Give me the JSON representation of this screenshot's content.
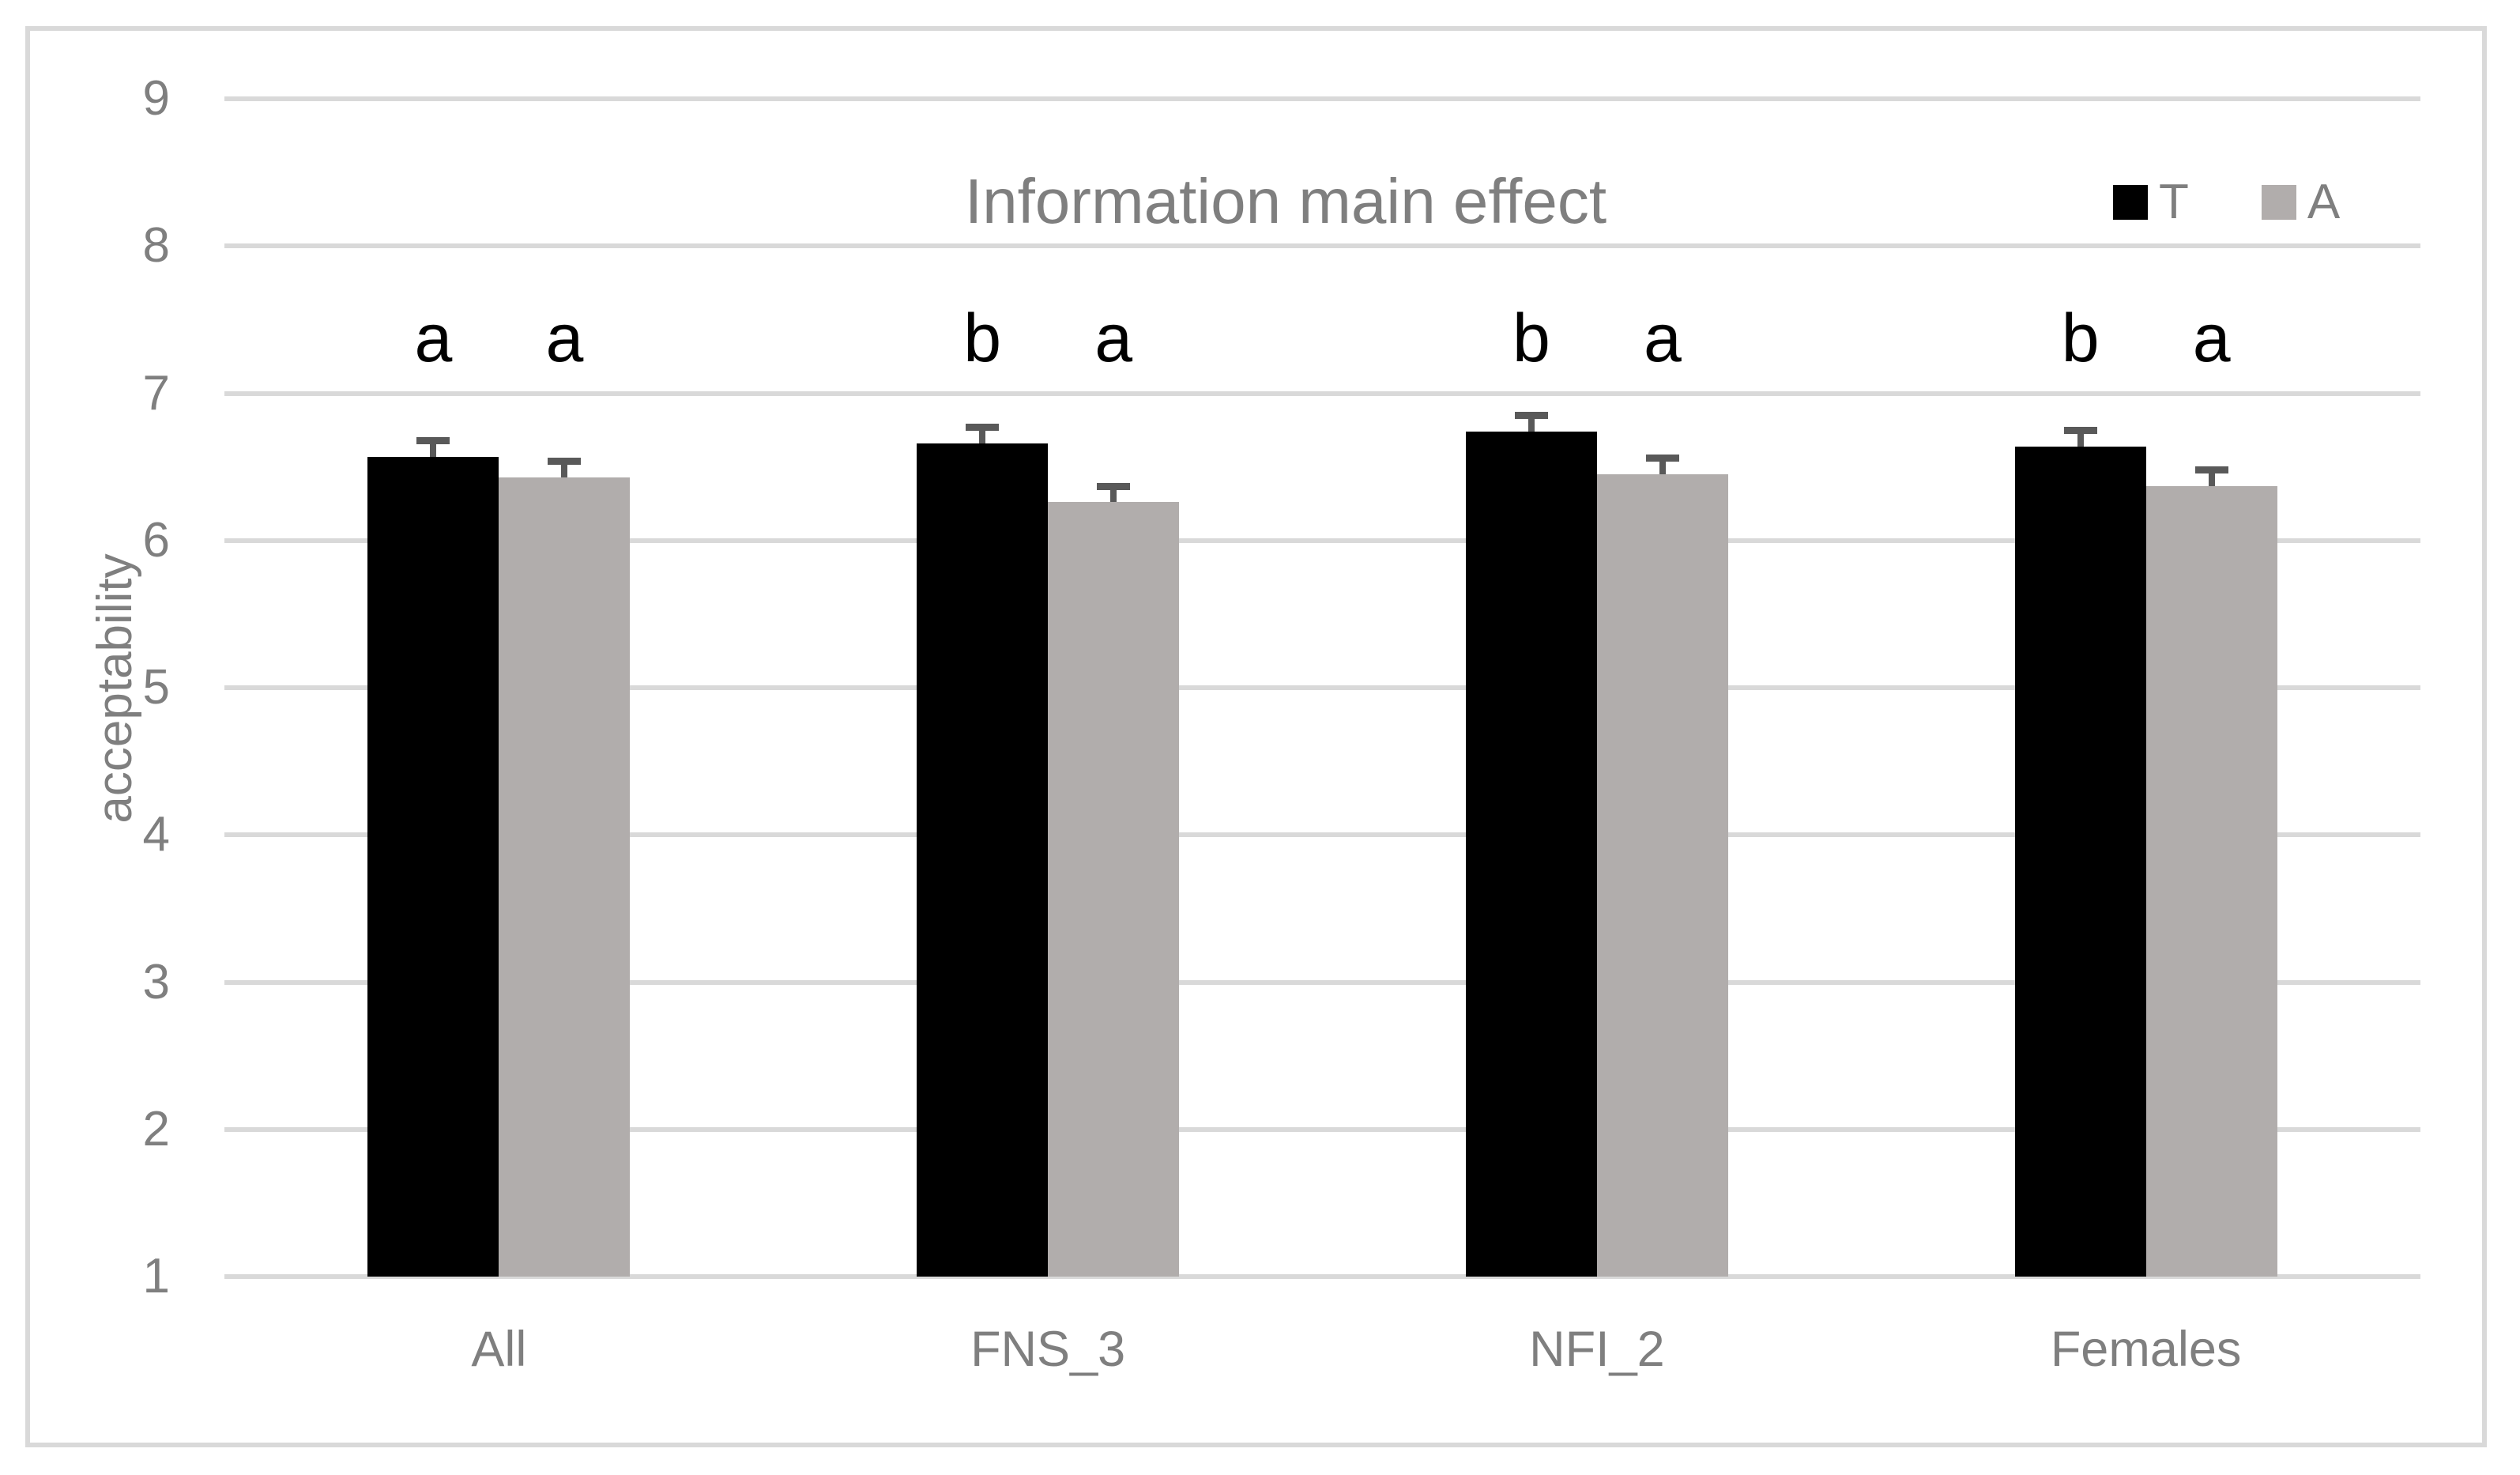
{
  "chart_data": {
    "type": "bar",
    "title": "Information main effect",
    "xlabel": "",
    "ylabel": "acceptability",
    "ylim": [
      1,
      9
    ],
    "yticks": [
      1,
      2,
      3,
      4,
      5,
      6,
      7,
      8,
      9
    ],
    "grid": true,
    "legend_position": "top-right",
    "categories": [
      "All",
      "FNS_3",
      "NFI_2",
      "Females"
    ],
    "series": [
      {
        "name": "T",
        "color": "#000000",
        "values": [
          6.57,
          6.66,
          6.74,
          6.64
        ],
        "errors_plus": [
          0.11,
          0.11,
          0.11,
          0.11
        ],
        "sig_letters": [
          "a",
          "b",
          "b",
          "b"
        ]
      },
      {
        "name": "A",
        "color": "#b1adac",
        "values": [
          6.43,
          6.26,
          6.45,
          6.37
        ],
        "errors_plus": [
          0.11,
          0.11,
          0.11,
          0.11
        ],
        "sig_letters": [
          "a",
          "a",
          "a",
          "a"
        ]
      }
    ],
    "colors": {
      "error_bar": "#595959",
      "gridline": "#d9d9d9",
      "frame_border": "#d9d9d9",
      "axis_text": "#7f7f7f",
      "title_text": "#7f7f7f",
      "sig_letter": "#000000",
      "plot_background": "#ffffff"
    }
  }
}
